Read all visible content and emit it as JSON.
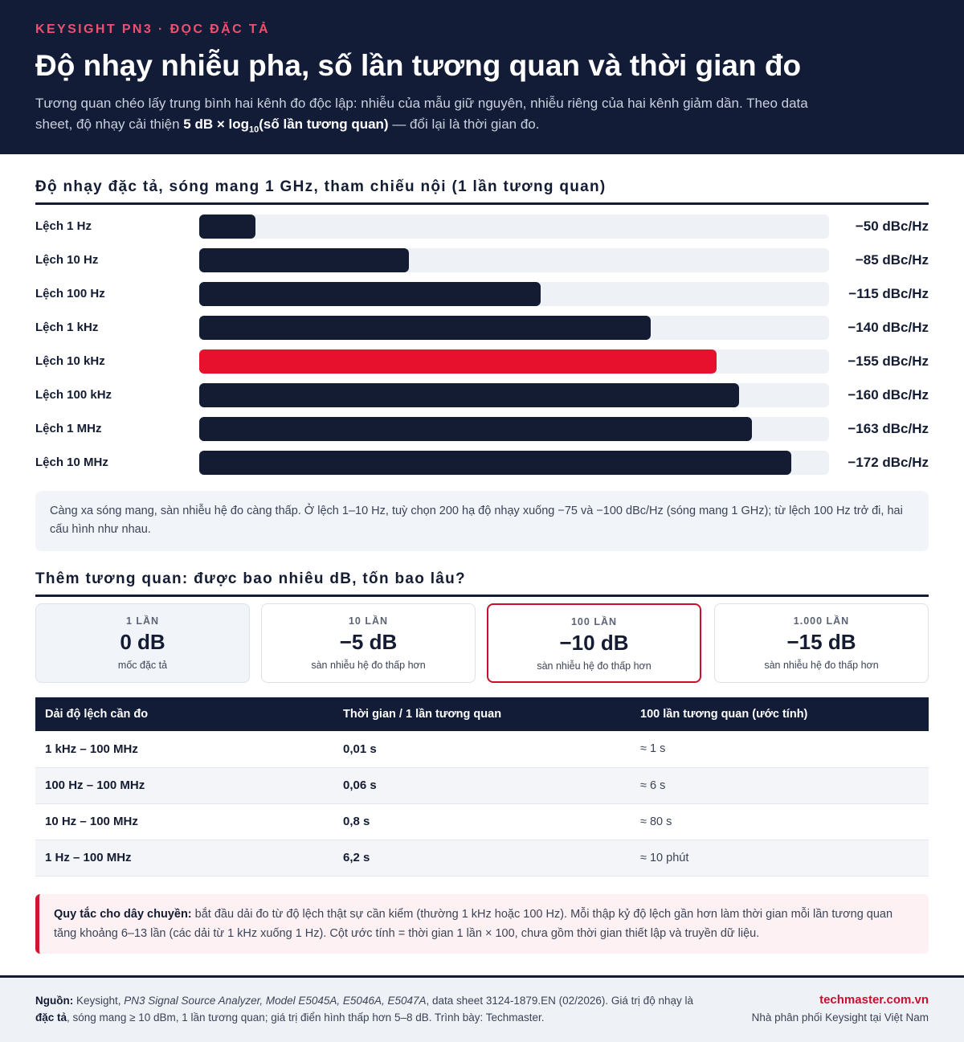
{
  "header": {
    "kicker": "KEYSIGHT PN3 · ĐỌC ĐẶC TẢ",
    "title": "Độ nhạy nhiễu pha, số lần tương quan và thời gian đo",
    "subtitle_1": "Tương quan chéo lấy trung bình hai kênh đo độc lập: nhiễu của mẫu giữ nguyên, nhiễu riêng của hai kênh giảm dần. Theo data sheet, độ nhạy cải thiện ",
    "subtitle_bold_a": "5 dB × log",
    "subtitle_sub": "10",
    "subtitle_bold_b": "(số lần tương quan)",
    "subtitle_2": " — đổi lại là thời gian đo."
  },
  "chart_data": {
    "type": "bar",
    "orientation": "horizontal",
    "title": "Độ nhạy đặc tả, sóng mang 1 GHz, tham chiếu nội (1 lần tương quan)",
    "categories": [
      "Lệch 1 Hz",
      "Lệch 10 Hz",
      "Lệch 100 Hz",
      "Lệch 1 kHz",
      "Lệch 10 kHz",
      "Lệch 100 kHz",
      "Lệch 1 MHz",
      "Lệch 10 MHz"
    ],
    "values": [
      -50,
      -85,
      -115,
      -140,
      -155,
      -160,
      -163,
      -172
    ],
    "value_labels": [
      "−50 dBc/Hz",
      "−85 dBc/Hz",
      "−115 dBc/Hz",
      "−140 dBc/Hz",
      "−155 dBc/Hz",
      "−160 dBc/Hz",
      "−163 dBc/Hz",
      "−172 dBc/Hz"
    ],
    "unit": "dBc/Hz",
    "highlight_index": 4,
    "colors": {
      "bar": "#131c33",
      "highlight": "#e8112d",
      "track": "#eef1f6"
    }
  },
  "note": "Càng xa sóng mang, sàn nhiễu hệ đo càng thấp. Ở lệch 1–10 Hz, tuỳ chọn 200 hạ độ nhạy xuống −75 và −100 dBc/Hz (sóng mang 1 GHz); từ lệch 100 Hz trở đi, hai cấu hình như nhau.",
  "section2_title": "Thêm tương quan: được bao nhiêu dB, tốn bao lâu?",
  "cards": [
    {
      "label": "1 LẦN",
      "value": "0 dB",
      "sub": "mốc đặc tả"
    },
    {
      "label": "10 LẦN",
      "value": "−5 dB",
      "sub": "sàn nhiễu hệ đo thấp hơn"
    },
    {
      "label": "100 LẦN",
      "value": "−10 dB",
      "sub": "sàn nhiễu hệ đo thấp hơn"
    },
    {
      "label": "1.000 LẦN",
      "value": "−15 dB",
      "sub": "sàn nhiễu hệ đo thấp hơn"
    }
  ],
  "table": {
    "headers": [
      "Dải độ lệch cần đo",
      "Thời gian / 1 lần tương quan",
      "100 lần tương quan (ước tính)"
    ],
    "rows": [
      [
        "1 kHz – 100 MHz",
        "0,01 s",
        "≈ 1 s"
      ],
      [
        "100 Hz – 100 MHz",
        "0,06 s",
        "≈ 6 s"
      ],
      [
        "10 Hz – 100 MHz",
        "0,8 s",
        "≈ 80 s"
      ],
      [
        "1 Hz – 100 MHz",
        "6,2 s",
        "≈ 10 phút"
      ]
    ]
  },
  "rule": {
    "bold": "Quy tắc cho dây chuyền:",
    "text": " bắt đầu dải đo từ độ lệch thật sự cần kiểm (thường 1 kHz hoặc 100 Hz). Mỗi thập kỷ độ lệch gần hơn làm thời gian mỗi lần tương quan tăng khoảng 6–13 lần (các dải từ 1 kHz xuống 1 Hz). Cột ước tính = thời gian 1 lần × 100, chưa gồm thời gian thiết lập và truyền dữ liệu."
  },
  "footer": {
    "source_label": "Nguồn:",
    "source_a": " Keysight, ",
    "source_italic": "PN3 Signal Source Analyzer, Model E5045A, E5046A, E5047A",
    "source_b": ", data sheet 3124-1879.EN (02/2026). Giá trị độ nhạy là ",
    "source_bold": "đặc tả",
    "source_c": ", sóng mang ≥ 10 dBm, 1 lần tương quan; giá trị điển hình thấp hơn 5–8 dB. Trình bày: Techmaster.",
    "site": "techmaster.com.vn",
    "tagline": "Nhà phân phối Keysight tại Việt Nam"
  }
}
